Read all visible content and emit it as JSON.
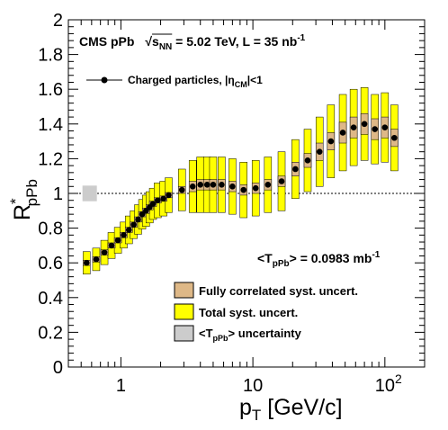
{
  "chart_data": {
    "type": "scatter",
    "title": "",
    "header": {
      "experiment": "CMS pPb",
      "sqrt_prefix": "s",
      "sqrt_sub": "NN",
      "energy_text": " = 5.02 TeV, L = 35 nb",
      "lumi_sup": "-1"
    },
    "xlabel": {
      "main": "p",
      "sub": "T",
      "rest": " [GeV/c]"
    },
    "ylabel": {
      "main": "R",
      "sup": "*",
      "sub": "pPb"
    },
    "x_scale": "log",
    "xlim": [
      0.4,
      200
    ],
    "ylim": [
      0,
      2
    ],
    "x_ticks": [
      {
        "value": 1,
        "base": "1",
        "exp": ""
      },
      {
        "value": 10,
        "base": "10",
        "exp": ""
      },
      {
        "value": 100,
        "base": "10",
        "exp": "2"
      }
    ],
    "y_ticks": [
      "0",
      "0.2",
      "0.4",
      "0.6",
      "0.8",
      "1",
      "1.2",
      "1.4",
      "1.6",
      "1.8",
      "2"
    ],
    "reference_line": 1,
    "tpb_text": {
      "pre": "<T",
      "sub": "pPb",
      "post": "> = 0.0983 mb",
      "sup": "-1"
    },
    "tpb_uncertainty": {
      "x": 0.58,
      "low": 0.955,
      "high": 1.045,
      "color": "#cccccc"
    },
    "legend": {
      "placement": "top-left",
      "marker": {
        "pre": "Charged particles, |",
        "greek": "η",
        "sub": "CM",
        "post": "|<1"
      },
      "boxes": [
        {
          "label": "Fully correlated syst. uncert.",
          "color": "#deb887"
        },
        {
          "label": "Total syst. uncert.",
          "color": "#ffff00"
        },
        {
          "pre": "<T",
          "sub": "pPb",
          "post": "> uncertainty",
          "color": "#cccccc"
        }
      ]
    },
    "series": [
      {
        "marker": "filled-circle",
        "color": "#000000",
        "points": [
          {
            "x": 0.55,
            "y": 0.6,
            "total": 0.065,
            "corr": 0.015
          },
          {
            "x": 0.65,
            "y": 0.62,
            "total": 0.065,
            "corr": 0.015
          },
          {
            "x": 0.75,
            "y": 0.66,
            "total": 0.07,
            "corr": 0.015
          },
          {
            "x": 0.85,
            "y": 0.7,
            "total": 0.075,
            "corr": 0.015
          },
          {
            "x": 0.95,
            "y": 0.73,
            "total": 0.075,
            "corr": 0.015
          },
          {
            "x": 1.05,
            "y": 0.76,
            "total": 0.075,
            "corr": 0.015
          },
          {
            "x": 1.15,
            "y": 0.79,
            "total": 0.08,
            "corr": 0.015
          },
          {
            "x": 1.25,
            "y": 0.82,
            "total": 0.08,
            "corr": 0.015
          },
          {
            "x": 1.35,
            "y": 0.85,
            "total": 0.085,
            "corr": 0.015
          },
          {
            "x": 1.45,
            "y": 0.88,
            "total": 0.085,
            "corr": 0.015
          },
          {
            "x": 1.55,
            "y": 0.9,
            "total": 0.09,
            "corr": 0.015
          },
          {
            "x": 1.65,
            "y": 0.92,
            "total": 0.09,
            "corr": 0.015
          },
          {
            "x": 1.75,
            "y": 0.94,
            "total": 0.09,
            "corr": 0.015
          },
          {
            "x": 1.9,
            "y": 0.96,
            "total": 0.1,
            "corr": 0.015
          },
          {
            "x": 2.1,
            "y": 0.97,
            "total": 0.1,
            "corr": 0.015
          },
          {
            "x": 2.3,
            "y": 0.99,
            "total": 0.1,
            "corr": 0.015
          },
          {
            "x": 2.9,
            "y": 1.02,
            "total": 0.12,
            "corr": 0.02
          },
          {
            "x": 3.5,
            "y": 1.04,
            "total": 0.15,
            "corr": 0.03
          },
          {
            "x": 4.0,
            "y": 1.05,
            "total": 0.16,
            "corr": 0.03
          },
          {
            "x": 4.5,
            "y": 1.05,
            "total": 0.16,
            "corr": 0.03
          },
          {
            "x": 5.0,
            "y": 1.05,
            "total": 0.16,
            "corr": 0.03
          },
          {
            "x": 5.8,
            "y": 1.05,
            "total": 0.16,
            "corr": 0.03
          },
          {
            "x": 7.0,
            "y": 1.04,
            "total": 0.16,
            "corr": 0.03
          },
          {
            "x": 8.5,
            "y": 1.02,
            "total": 0.16,
            "corr": 0.03
          },
          {
            "x": 10.5,
            "y": 1.03,
            "total": 0.16,
            "corr": 0.03
          },
          {
            "x": 13,
            "y": 1.05,
            "total": 0.16,
            "corr": 0.03
          },
          {
            "x": 16.5,
            "y": 1.07,
            "total": 0.17,
            "corr": 0.03
          },
          {
            "x": 21,
            "y": 1.14,
            "total": 0.17,
            "corr": 0.04
          },
          {
            "x": 26,
            "y": 1.19,
            "total": 0.18,
            "corr": 0.04
          },
          {
            "x": 32,
            "y": 1.24,
            "total": 0.2,
            "corr": 0.05
          },
          {
            "x": 39,
            "y": 1.3,
            "total": 0.21,
            "corr": 0.05
          },
          {
            "x": 48,
            "y": 1.35,
            "total": 0.22,
            "corr": 0.06
          },
          {
            "x": 58,
            "y": 1.38,
            "total": 0.22,
            "corr": 0.06
          },
          {
            "x": 70,
            "y": 1.4,
            "total": 0.21,
            "corr": 0.06
          },
          {
            "x": 84,
            "y": 1.37,
            "total": 0.2,
            "corr": 0.06
          },
          {
            "x": 100,
            "y": 1.38,
            "total": 0.2,
            "corr": 0.06
          },
          {
            "x": 118,
            "y": 1.32,
            "total": 0.19,
            "corr": 0.05
          }
        ]
      }
    ]
  }
}
